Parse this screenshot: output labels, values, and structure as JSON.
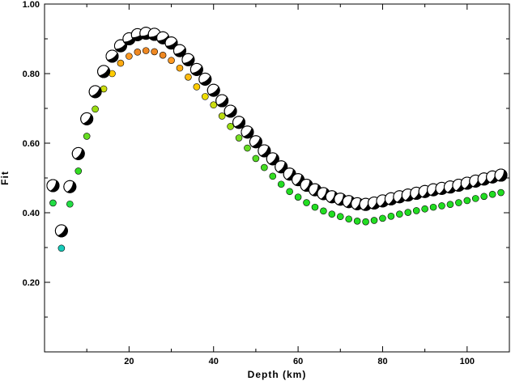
{
  "chart_data": {
    "type": "scatter",
    "title": "",
    "xlabel": "Depth (km)",
    "ylabel": "Fit",
    "xlim": [
      0,
      110
    ],
    "ylim": [
      0,
      1.0
    ],
    "grid": false,
    "x_ticks": [
      20,
      40,
      60,
      80,
      100
    ],
    "y_ticks": [
      0.2,
      0.4,
      0.6,
      0.8,
      1.0
    ],
    "x_tick_labels": [
      "20",
      "40",
      "60",
      "80",
      "100"
    ],
    "y_tick_labels": [
      "0.20",
      "0.40",
      "0.60",
      "0.80",
      "1.00"
    ],
    "series": [
      {
        "marker": "mechanism-beachball",
        "colors": {
          "fill": "#000000",
          "background": "#ffffff"
        },
        "x": [
          2,
          4,
          6,
          8,
          10,
          12,
          14,
          16,
          18,
          20,
          22,
          24,
          26,
          28,
          30,
          32,
          34,
          36,
          38,
          40,
          42,
          44,
          46,
          48,
          50,
          52,
          54,
          56,
          58,
          60,
          62,
          64,
          66,
          68,
          70,
          72,
          74,
          76,
          78,
          80,
          82,
          84,
          86,
          88,
          90,
          92,
          94,
          96,
          98,
          100,
          102,
          104,
          106,
          108
        ],
        "y": [
          0.478,
          0.348,
          0.475,
          0.57,
          0.67,
          0.748,
          0.806,
          0.85,
          0.88,
          0.9,
          0.912,
          0.916,
          0.913,
          0.903,
          0.888,
          0.866,
          0.84,
          0.812,
          0.784,
          0.752,
          0.722,
          0.692,
          0.66,
          0.632,
          0.604,
          0.578,
          0.555,
          0.532,
          0.511,
          0.495,
          0.479,
          0.466,
          0.455,
          0.446,
          0.439,
          0.432,
          0.426,
          0.424,
          0.428,
          0.434,
          0.44,
          0.446,
          0.451,
          0.456,
          0.461,
          0.466,
          0.47,
          0.474,
          0.479,
          0.485,
          0.491,
          0.497,
          0.503,
          0.508
        ],
        "orientations": [
          30,
          40,
          30,
          35,
          40,
          45,
          50,
          55,
          60,
          62,
          64,
          66,
          66,
          64,
          62,
          60,
          58,
          56,
          54,
          52,
          50,
          48,
          46,
          44,
          42,
          40,
          38,
          36,
          34,
          32,
          30,
          28,
          28,
          28,
          28,
          28,
          28,
          28,
          28,
          28,
          28,
          28,
          28,
          28,
          28,
          28,
          28,
          28,
          28,
          28,
          28,
          28,
          28,
          28
        ]
      },
      {
        "marker": "circle",
        "x": [
          2,
          4,
          6,
          8,
          10,
          12,
          14,
          16,
          18,
          20,
          22,
          24,
          26,
          28,
          30,
          32,
          34,
          36,
          38,
          40,
          42,
          44,
          46,
          48,
          50,
          52,
          54,
          56,
          58,
          60,
          62,
          64,
          66,
          68,
          70,
          72,
          74,
          76,
          78,
          80,
          82,
          84,
          86,
          88,
          90,
          92,
          94,
          96,
          98,
          100,
          102,
          104,
          106,
          108
        ],
        "y": [
          0.428,
          0.298,
          0.425,
          0.52,
          0.62,
          0.698,
          0.756,
          0.8,
          0.83,
          0.85,
          0.862,
          0.866,
          0.863,
          0.853,
          0.838,
          0.816,
          0.79,
          0.762,
          0.734,
          0.71,
          0.678,
          0.648,
          0.615,
          0.586,
          0.556,
          0.53,
          0.505,
          0.482,
          0.461,
          0.445,
          0.429,
          0.416,
          0.405,
          0.396,
          0.389,
          0.382,
          0.376,
          0.374,
          0.378,
          0.384,
          0.39,
          0.396,
          0.401,
          0.406,
          0.411,
          0.416,
          0.42,
          0.424,
          0.429,
          0.435,
          0.441,
          0.447,
          0.453,
          0.458
        ],
        "colors": [
          "#22dd44",
          "#18ccbb",
          "#22dd44",
          "#33dd22",
          "#66dd22",
          "#99dd11",
          "#ccdd11",
          "#ffcc00",
          "#ffaa11",
          "#ff9922",
          "#ee8822",
          "#ee8822",
          "#ee8822",
          "#ee8822",
          "#ff9922",
          "#ffaa11",
          "#ffbb11",
          "#ffcc00",
          "#eedd00",
          "#ccdd11",
          "#bbdd11",
          "#99dd11",
          "#77dd22",
          "#66dd22",
          "#55dd22",
          "#44dd22",
          "#33dd22",
          "#22dd22",
          "#22dd22",
          "#22dd22",
          "#22dd22",
          "#22dd22",
          "#22dd22",
          "#22dd22",
          "#22dd22",
          "#22dd22",
          "#22dd22",
          "#22dd22",
          "#22dd22",
          "#22dd22",
          "#22dd22",
          "#22dd22",
          "#22dd22",
          "#22dd22",
          "#22dd22",
          "#22dd22",
          "#22dd22",
          "#22dd22",
          "#22dd22",
          "#22dd22",
          "#22dd22",
          "#22dd22",
          "#22dd22",
          "#22dd22"
        ]
      }
    ]
  }
}
